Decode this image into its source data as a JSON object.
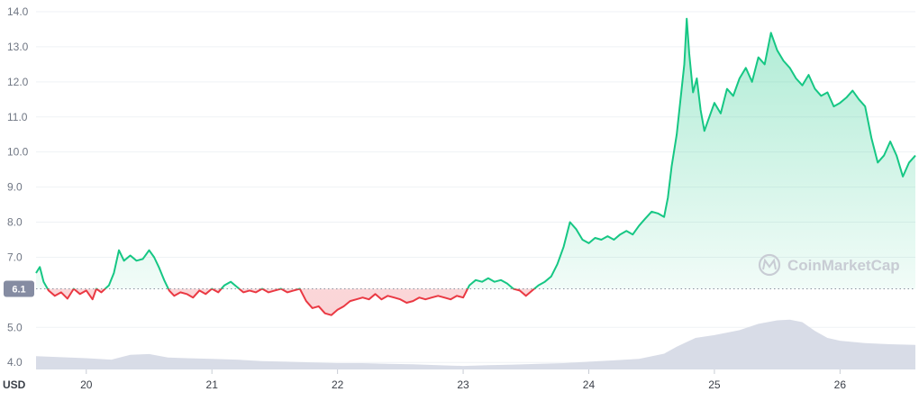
{
  "chart_data": {
    "type": "area",
    "currency_label": "USD",
    "baseline_value": 6.1,
    "baseline_label": "6.1",
    "watermark": "CoinMarketCap",
    "ylim": [
      3.8,
      14.0
    ],
    "yticks": [
      {
        "value": 14.0,
        "label": "14.0"
      },
      {
        "value": 13.0,
        "label": "13.0"
      },
      {
        "value": 12.0,
        "label": "12.0"
      },
      {
        "value": 11.0,
        "label": "11.0"
      },
      {
        "value": 10.0,
        "label": "10.0"
      },
      {
        "value": 9.0,
        "label": "9.0"
      },
      {
        "value": 8.0,
        "label": "8.0"
      },
      {
        "value": 7.0,
        "label": "7.0"
      },
      {
        "value": 5.0,
        "label": "5.0"
      },
      {
        "value": 4.0,
        "label": "4.0"
      }
    ],
    "xlim": [
      19.6,
      26.6
    ],
    "xticks": [
      {
        "value": 20,
        "label": "20"
      },
      {
        "value": 21,
        "label": "21"
      },
      {
        "value": 22,
        "label": "22"
      },
      {
        "value": 23,
        "label": "23"
      },
      {
        "value": 24,
        "label": "24"
      },
      {
        "value": 25,
        "label": "25"
      },
      {
        "value": 26,
        "label": "26"
      }
    ],
    "colors": {
      "above": "#16c784",
      "below": "#ea3943",
      "volume": "#d4d8e4",
      "grid": "#eff2f5",
      "baseline": "#8c93a0",
      "badge": "#858ca2"
    },
    "series": [
      {
        "values": [
          [
            19.6,
            6.55
          ],
          [
            19.63,
            6.72
          ],
          [
            19.66,
            6.3
          ],
          [
            19.7,
            6.05
          ],
          [
            19.75,
            5.9
          ],
          [
            19.8,
            6.0
          ],
          [
            19.85,
            5.82
          ],
          [
            19.9,
            6.1
          ],
          [
            19.95,
            5.95
          ],
          [
            20.0,
            6.05
          ],
          [
            20.05,
            5.8
          ],
          [
            20.08,
            6.1
          ],
          [
            20.12,
            6.0
          ],
          [
            20.18,
            6.2
          ],
          [
            20.22,
            6.55
          ],
          [
            20.26,
            7.2
          ],
          [
            20.3,
            6.9
          ],
          [
            20.35,
            7.05
          ],
          [
            20.4,
            6.9
          ],
          [
            20.45,
            6.95
          ],
          [
            20.5,
            7.2
          ],
          [
            20.54,
            7.0
          ],
          [
            20.58,
            6.7
          ],
          [
            20.62,
            6.35
          ],
          [
            20.66,
            6.05
          ],
          [
            20.7,
            5.9
          ],
          [
            20.75,
            6.0
          ],
          [
            20.8,
            5.95
          ],
          [
            20.85,
            5.85
          ],
          [
            20.9,
            6.05
          ],
          [
            20.95,
            5.95
          ],
          [
            21.0,
            6.1
          ],
          [
            21.05,
            6.0
          ],
          [
            21.1,
            6.2
          ],
          [
            21.15,
            6.3
          ],
          [
            21.2,
            6.15
          ],
          [
            21.25,
            6.0
          ],
          [
            21.3,
            6.05
          ],
          [
            21.35,
            6.0
          ],
          [
            21.4,
            6.1
          ],
          [
            21.45,
            6.0
          ],
          [
            21.5,
            6.05
          ],
          [
            21.55,
            6.1
          ],
          [
            21.6,
            6.0
          ],
          [
            21.65,
            6.05
          ],
          [
            21.7,
            6.1
          ],
          [
            21.75,
            5.75
          ],
          [
            21.8,
            5.55
          ],
          [
            21.85,
            5.6
          ],
          [
            21.9,
            5.4
          ],
          [
            21.95,
            5.35
          ],
          [
            22.0,
            5.5
          ],
          [
            22.05,
            5.6
          ],
          [
            22.1,
            5.75
          ],
          [
            22.15,
            5.8
          ],
          [
            22.2,
            5.85
          ],
          [
            22.25,
            5.8
          ],
          [
            22.3,
            5.95
          ],
          [
            22.35,
            5.8
          ],
          [
            22.4,
            5.9
          ],
          [
            22.45,
            5.85
          ],
          [
            22.5,
            5.8
          ],
          [
            22.55,
            5.7
          ],
          [
            22.6,
            5.75
          ],
          [
            22.65,
            5.85
          ],
          [
            22.7,
            5.8
          ],
          [
            22.75,
            5.85
          ],
          [
            22.8,
            5.9
          ],
          [
            22.85,
            5.85
          ],
          [
            22.9,
            5.8
          ],
          [
            22.95,
            5.9
          ],
          [
            23.0,
            5.85
          ],
          [
            23.05,
            6.2
          ],
          [
            23.1,
            6.35
          ],
          [
            23.15,
            6.3
          ],
          [
            23.2,
            6.4
          ],
          [
            23.25,
            6.3
          ],
          [
            23.3,
            6.35
          ],
          [
            23.35,
            6.25
          ],
          [
            23.4,
            6.1
          ],
          [
            23.45,
            6.05
          ],
          [
            23.5,
            5.9
          ],
          [
            23.55,
            6.05
          ],
          [
            23.6,
            6.2
          ],
          [
            23.65,
            6.3
          ],
          [
            23.7,
            6.45
          ],
          [
            23.75,
            6.8
          ],
          [
            23.8,
            7.3
          ],
          [
            23.85,
            8.0
          ],
          [
            23.9,
            7.8
          ],
          [
            23.95,
            7.5
          ],
          [
            24.0,
            7.4
          ],
          [
            24.05,
            7.55
          ],
          [
            24.1,
            7.5
          ],
          [
            24.15,
            7.6
          ],
          [
            24.2,
            7.5
          ],
          [
            24.25,
            7.65
          ],
          [
            24.3,
            7.75
          ],
          [
            24.35,
            7.65
          ],
          [
            24.4,
            7.9
          ],
          [
            24.45,
            8.1
          ],
          [
            24.5,
            8.3
          ],
          [
            24.55,
            8.25
          ],
          [
            24.6,
            8.15
          ],
          [
            24.63,
            8.7
          ],
          [
            24.66,
            9.6
          ],
          [
            24.7,
            10.5
          ],
          [
            24.73,
            11.5
          ],
          [
            24.76,
            12.5
          ],
          [
            24.78,
            13.8
          ],
          [
            24.8,
            12.8
          ],
          [
            24.83,
            11.7
          ],
          [
            24.86,
            12.1
          ],
          [
            24.89,
            11.2
          ],
          [
            24.92,
            10.6
          ],
          [
            24.95,
            10.9
          ],
          [
            25.0,
            11.4
          ],
          [
            25.05,
            11.1
          ],
          [
            25.1,
            11.8
          ],
          [
            25.15,
            11.6
          ],
          [
            25.2,
            12.1
          ],
          [
            25.25,
            12.4
          ],
          [
            25.3,
            12.0
          ],
          [
            25.35,
            12.7
          ],
          [
            25.4,
            12.5
          ],
          [
            25.45,
            13.4
          ],
          [
            25.5,
            12.9
          ],
          [
            25.55,
            12.6
          ],
          [
            25.6,
            12.4
          ],
          [
            25.65,
            12.1
          ],
          [
            25.7,
            11.9
          ],
          [
            25.75,
            12.2
          ],
          [
            25.8,
            11.8
          ],
          [
            25.85,
            11.6
          ],
          [
            25.9,
            11.7
          ],
          [
            25.95,
            11.3
          ],
          [
            26.0,
            11.4
          ],
          [
            26.05,
            11.55
          ],
          [
            26.1,
            11.75
          ],
          [
            26.15,
            11.5
          ],
          [
            26.2,
            11.3
          ],
          [
            26.25,
            10.4
          ],
          [
            26.3,
            9.7
          ],
          [
            26.35,
            9.9
          ],
          [
            26.4,
            10.3
          ],
          [
            26.45,
            9.9
          ],
          [
            26.5,
            9.3
          ],
          [
            26.55,
            9.7
          ],
          [
            26.6,
            9.9
          ]
        ]
      }
    ],
    "volume": [
      [
        19.6,
        4.18
      ],
      [
        19.8,
        4.15
      ],
      [
        20.0,
        4.12
      ],
      [
        20.2,
        4.08
      ],
      [
        20.35,
        4.22
      ],
      [
        20.5,
        4.24
      ],
      [
        20.65,
        4.14
      ],
      [
        20.8,
        4.12
      ],
      [
        21.0,
        4.1
      ],
      [
        21.2,
        4.08
      ],
      [
        21.4,
        4.04
      ],
      [
        21.6,
        4.02
      ],
      [
        21.8,
        4.0
      ],
      [
        22.0,
        3.98
      ],
      [
        22.2,
        3.98
      ],
      [
        22.4,
        3.96
      ],
      [
        22.6,
        3.95
      ],
      [
        22.8,
        3.92
      ],
      [
        23.0,
        3.9
      ],
      [
        23.2,
        3.92
      ],
      [
        23.4,
        3.94
      ],
      [
        23.6,
        3.96
      ],
      [
        23.8,
        3.98
      ],
      [
        24.0,
        4.02
      ],
      [
        24.2,
        4.06
      ],
      [
        24.4,
        4.1
      ],
      [
        24.6,
        4.25
      ],
      [
        24.7,
        4.45
      ],
      [
        24.85,
        4.7
      ],
      [
        25.0,
        4.78
      ],
      [
        25.2,
        4.92
      ],
      [
        25.35,
        5.1
      ],
      [
        25.5,
        5.2
      ],
      [
        25.6,
        5.22
      ],
      [
        25.7,
        5.15
      ],
      [
        25.8,
        4.9
      ],
      [
        25.9,
        4.7
      ],
      [
        26.0,
        4.62
      ],
      [
        26.2,
        4.55
      ],
      [
        26.4,
        4.52
      ],
      [
        26.6,
        4.5
      ]
    ]
  }
}
